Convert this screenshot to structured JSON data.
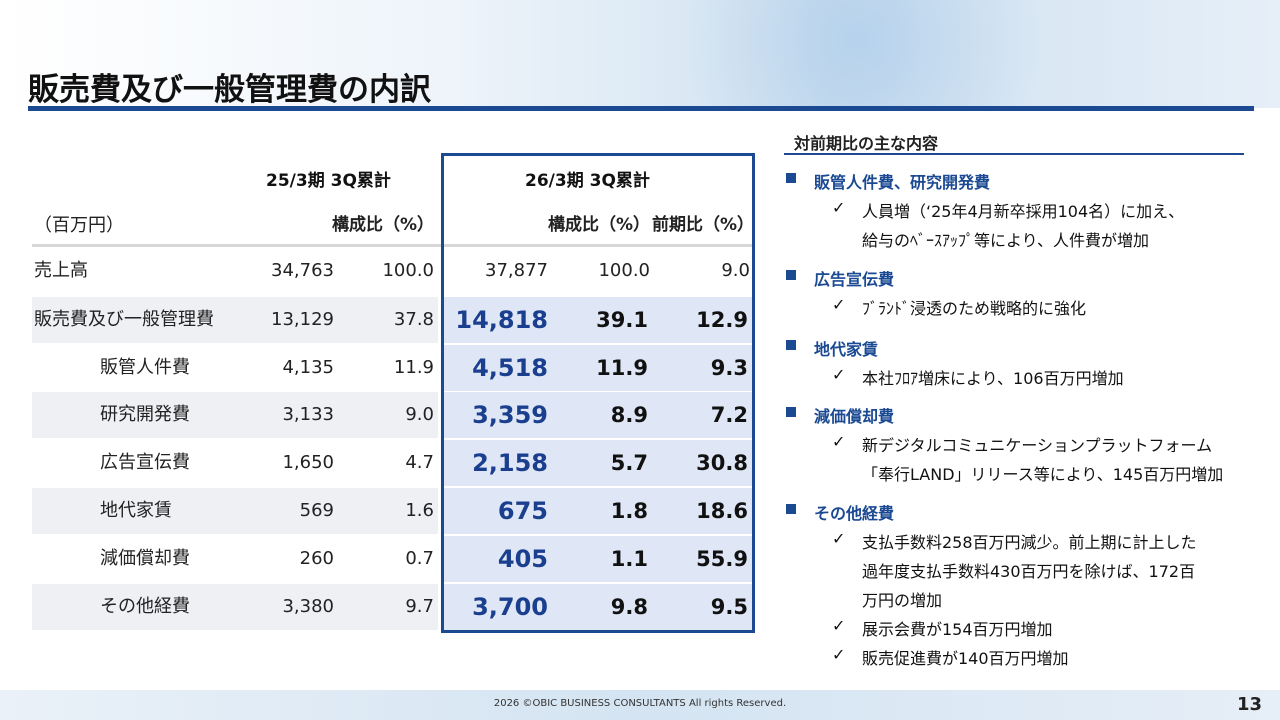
{
  "title": "販売費及び一般管理費の内訳",
  "table": {
    "period_prev": "25/3期 3Q累計",
    "period_curr": "26/3期 3Q累計",
    "unit": "（百万円）",
    "col_ratio": "構成比（%）",
    "col_yoy": "前期比（%）",
    "rows": [
      {
        "label": "売上高",
        "prev": "34,763",
        "prev_ratio": "100.0",
        "curr": "37,877",
        "curr_ratio": "100.0",
        "yoy": "9.0"
      },
      {
        "label": "販売費及び一般管理費",
        "prev": "13,129",
        "prev_ratio": "37.8",
        "curr": "14,818",
        "curr_ratio": "39.1",
        "yoy": "12.9"
      },
      {
        "label": "販管人件費",
        "prev": "4,135",
        "prev_ratio": "11.9",
        "curr": "4,518",
        "curr_ratio": "11.9",
        "yoy": "9.3"
      },
      {
        "label": "研究開発費",
        "prev": "3,133",
        "prev_ratio": "9.0",
        "curr": "3,359",
        "curr_ratio": "8.9",
        "yoy": "7.2"
      },
      {
        "label": "広告宣伝費",
        "prev": "1,650",
        "prev_ratio": "4.7",
        "curr": "2,158",
        "curr_ratio": "5.7",
        "yoy": "30.8"
      },
      {
        "label": "地代家賃",
        "prev": "569",
        "prev_ratio": "1.6",
        "curr": "675",
        "curr_ratio": "1.8",
        "yoy": "18.6"
      },
      {
        "label": "減価償却費",
        "prev": "260",
        "prev_ratio": "0.7",
        "curr": "405",
        "curr_ratio": "1.1",
        "yoy": "55.9"
      },
      {
        "label": "その他経費",
        "prev": "3,380",
        "prev_ratio": "9.7",
        "curr": "3,700",
        "curr_ratio": "9.8",
        "yoy": "9.5"
      }
    ]
  },
  "summary": {
    "heading": "対前期比の主な内容",
    "sections": [
      {
        "title": "販管人件費、研究開発費",
        "lines": [
          "人員増（‘25年4月新卒採用104名）に加え、",
          "給与のﾍﾞｰｽｱｯﾌﾟ等により、人件費が増加"
        ]
      },
      {
        "title": "広告宣伝費",
        "lines": [
          "ﾌﾞﾗﾝﾄﾞ浸透のため戦略的に強化"
        ]
      },
      {
        "title": "地代家賃",
        "lines": [
          "本社ﾌﾛｱ増床により、106百万円増加"
        ]
      },
      {
        "title": "減価償却費",
        "lines": [
          "新デジタルコミュニケーションプラットフォーム",
          "「奉行LAND」リリース等により、145百万円増加"
        ]
      },
      {
        "title": "その他経費",
        "lines": [
          "支払手数料258百万円減少。前上期に計上した",
          "過年度支払手数料430百万円を除けば、172百",
          "万円の増加",
          "展示会費が154百万円増加",
          "販売促進費が140百万円増加"
        ]
      }
    ],
    "check": "✓"
  },
  "footer": {
    "copyright": "2026 ©OBIC BUSINESS CONSULTANTS All rights Reserved.",
    "page": "13"
  }
}
